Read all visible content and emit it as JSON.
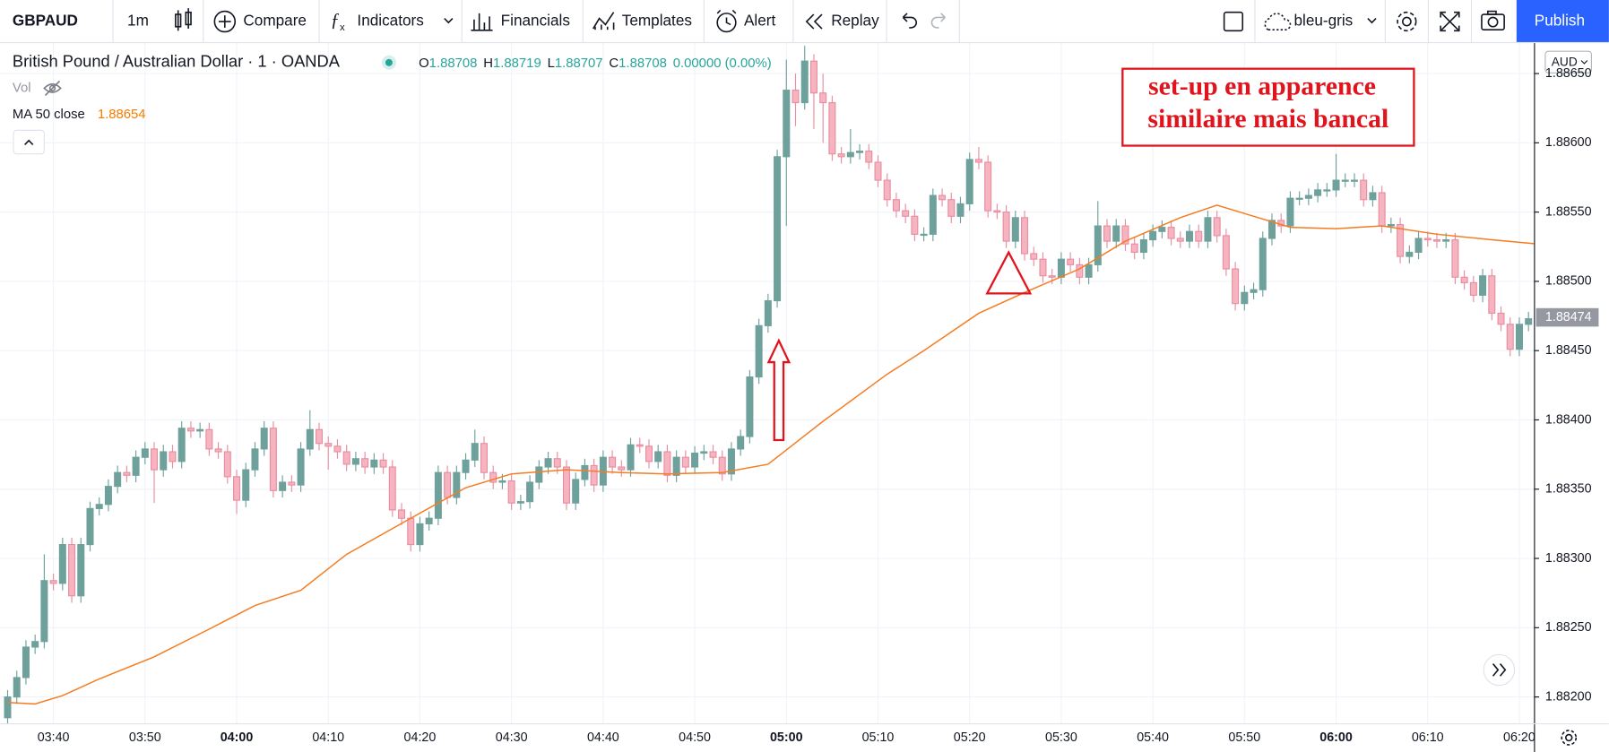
{
  "toolbar": {
    "symbol": "GBPAUD",
    "interval": "1m",
    "compare": "Compare",
    "indicators": "Indicators",
    "financials": "Financials",
    "templates": "Templates",
    "alert": "Alert",
    "replay": "Replay",
    "layout": "bleu-gris",
    "publish": "Publish"
  },
  "legend": {
    "instrument": "British Pound / Australian Dollar · 1 · OANDA",
    "ohlc": [
      {
        "k": "O",
        "v": "1.88708"
      },
      {
        "k": "H",
        "v": "1.88719"
      },
      {
        "k": "L",
        "v": "1.88707"
      },
      {
        "k": "C",
        "v": "1.88708"
      }
    ],
    "change": "0.00000 (0.00%)",
    "vol": "Vol",
    "ma_name": "MA 50 close",
    "ma_value": "1.88654"
  },
  "currency": "AUD",
  "chart_data": {
    "type": "candlestick",
    "x": [
      215,
      216,
      217,
      218,
      219,
      220,
      221,
      222,
      223,
      224,
      225,
      226,
      227,
      228,
      229,
      230,
      231,
      232,
      233,
      234,
      235,
      236,
      237,
      238,
      239,
      240,
      241,
      242,
      243,
      244,
      245,
      246,
      247,
      248,
      249,
      250,
      251,
      252,
      253,
      254,
      255,
      256,
      257,
      258,
      259,
      260,
      261,
      262,
      263,
      264,
      265,
      266,
      267,
      268,
      269,
      270,
      271,
      272,
      273,
      274,
      275,
      276,
      277,
      278,
      279,
      280,
      281,
      282,
      283,
      284,
      285,
      286,
      287,
      288,
      289,
      290,
      291,
      292,
      293,
      294,
      295,
      296,
      297,
      298,
      299,
      300,
      301,
      302,
      303,
      304,
      305,
      306,
      307,
      308,
      309,
      310,
      311,
      312,
      313,
      314,
      315,
      316,
      317,
      318,
      319,
      320,
      321,
      322,
      323,
      324,
      325,
      326,
      327,
      328,
      329,
      330,
      331,
      332,
      333,
      334,
      335,
      336,
      337,
      338,
      339,
      340,
      341,
      342,
      343,
      344,
      345,
      346,
      347,
      348,
      349,
      350,
      351,
      352,
      353,
      354,
      355,
      356,
      357,
      358,
      359,
      360,
      361,
      362,
      363,
      364,
      365,
      366,
      367,
      368,
      369,
      370,
      371,
      372,
      373,
      374,
      375,
      376,
      377,
      378,
      379,
      380,
      381
    ],
    "open": [
      1.88185,
      1.882,
      1.88214,
      1.88236,
      1.8824,
      1.88284,
      1.88282,
      1.8831,
      1.88273,
      1.8831,
      1.88336,
      1.88339,
      1.88352,
      1.88362,
      1.8836,
      1.88373,
      1.88379,
      1.88364,
      1.88377,
      1.8837,
      1.88394,
      1.88392,
      1.88393,
      1.88379,
      1.88377,
      1.88359,
      1.88342,
      1.88364,
      1.88379,
      1.88394,
      1.88349,
      1.88355,
      1.88353,
      1.88379,
      1.88393,
      1.88383,
      1.88381,
      1.88377,
      1.88368,
      1.88372,
      1.88366,
      1.88371,
      1.88366,
      1.88335,
      1.88329,
      1.8831,
      1.88325,
      1.88329,
      1.88362,
      1.88344,
      1.88362,
      1.88371,
      1.88383,
      1.88362,
      1.88355,
      1.88356,
      1.8834,
      1.88341,
      1.88355,
      1.88366,
      1.88372,
      1.88366,
      1.8834,
      1.88357,
      1.88367,
      1.88353,
      1.88373,
      1.88366,
      1.88364,
      1.88382,
      1.88381,
      1.8837,
      1.88377,
      1.8836,
      1.88373,
      1.88366,
      1.88376,
      1.88377,
      1.88373,
      1.88361,
      1.88379,
      1.88388,
      1.88431,
      1.88468,
      1.88486,
      1.8859,
      1.88638,
      1.88629,
      1.88659,
      1.88636,
      1.88629,
      1.88592,
      1.8859,
      1.88593,
      1.88594,
      1.88586,
      1.88573,
      1.88559,
      1.88551,
      1.88547,
      1.88534,
      1.88534,
      1.88562,
      1.88559,
      1.88547,
      1.88556,
      1.88588,
      1.88586,
      1.88551,
      1.8855,
      1.88529,
      1.88546,
      1.8852,
      1.88516,
      1.88504,
      1.88503,
      1.88516,
      1.88512,
      1.88503,
      1.88512,
      1.8854,
      1.88529,
      1.8854,
      1.88527,
      1.88521,
      1.8853,
      1.88536,
      1.88539,
      1.88531,
      1.88529,
      1.88536,
      1.88529,
      1.88546,
      1.88533,
      1.88509,
      1.88484,
      1.88492,
      1.88494,
      1.88531,
      1.88544,
      1.8854,
      1.8856,
      1.8856,
      1.88562,
      1.88566,
      1.88566,
      1.88573,
      1.88573,
      1.88573,
      1.88559,
      1.88564,
      1.8854,
      1.88541,
      1.88518,
      1.88521,
      1.88531,
      1.8853,
      1.88529,
      1.8853,
      1.88503,
      1.88499,
      1.8849,
      1.88504,
      1.88477,
      1.88469,
      1.88451,
      1.88469
    ],
    "high": [
      1.88205,
      1.88219,
      1.88241,
      1.88245,
      1.88303,
      1.88289,
      1.88315,
      1.88315,
      1.88315,
      1.88341,
      1.88344,
      1.88357,
      1.88367,
      1.88367,
      1.88378,
      1.88384,
      1.88384,
      1.88382,
      1.88382,
      1.88399,
      1.88399,
      1.88398,
      1.88398,
      1.88384,
      1.88382,
      1.88364,
      1.88369,
      1.88384,
      1.88399,
      1.88399,
      1.8836,
      1.8836,
      1.88384,
      1.88407,
      1.88398,
      1.88388,
      1.88386,
      1.88382,
      1.88377,
      1.88377,
      1.88376,
      1.88376,
      1.88371,
      1.8834,
      1.88334,
      1.8833,
      1.88334,
      1.88367,
      1.88367,
      1.88367,
      1.88376,
      1.88393,
      1.88388,
      1.88367,
      1.88361,
      1.88361,
      1.88346,
      1.8836,
      1.88371,
      1.88377,
      1.88377,
      1.88371,
      1.88362,
      1.88372,
      1.88372,
      1.88378,
      1.88378,
      1.88371,
      1.88387,
      1.88387,
      1.88386,
      1.88382,
      1.88382,
      1.88378,
      1.88378,
      1.88381,
      1.88382,
      1.88382,
      1.88378,
      1.88384,
      1.88393,
      1.88436,
      1.88473,
      1.88491,
      1.88595,
      1.8866,
      1.8865,
      1.8867,
      1.88664,
      1.8865,
      1.88634,
      1.88597,
      1.8861,
      1.88599,
      1.88599,
      1.88591,
      1.88578,
      1.88564,
      1.88556,
      1.88552,
      1.88539,
      1.88567,
      1.88567,
      1.88564,
      1.88561,
      1.88593,
      1.88597,
      1.88591,
      1.88556,
      1.88555,
      1.88551,
      1.88551,
      1.88525,
      1.88521,
      1.88509,
      1.88521,
      1.88521,
      1.88517,
      1.88517,
      1.88558,
      1.88545,
      1.88545,
      1.88545,
      1.88532,
      1.88535,
      1.88541,
      1.88544,
      1.88544,
      1.88536,
      1.88541,
      1.88541,
      1.88551,
      1.88551,
      1.88538,
      1.88514,
      1.88497,
      1.88499,
      1.88536,
      1.88549,
      1.88549,
      1.88565,
      1.88565,
      1.88567,
      1.88571,
      1.88571,
      1.88592,
      1.88578,
      1.88578,
      1.88578,
      1.88569,
      1.88569,
      1.88546,
      1.88546,
      1.88526,
      1.88536,
      1.88536,
      1.88535,
      1.88535,
      1.88535,
      1.88508,
      1.88504,
      1.88509,
      1.88509,
      1.88482,
      1.88474,
      1.88474,
      1.88478
    ],
    "low": [
      1.8818,
      1.88195,
      1.88209,
      1.88231,
      1.88235,
      1.88277,
      1.88277,
      1.88268,
      1.88268,
      1.88305,
      1.88331,
      1.88334,
      1.88347,
      1.88355,
      1.88355,
      1.88368,
      1.8834,
      1.88359,
      1.88365,
      1.88365,
      1.88387,
      1.88387,
      1.88374,
      1.88372,
      1.88354,
      1.88332,
      1.88337,
      1.88359,
      1.88374,
      1.88344,
      1.88344,
      1.88348,
      1.88348,
      1.88374,
      1.88378,
      1.88364,
      1.88372,
      1.88363,
      1.88363,
      1.88361,
      1.88361,
      1.88361,
      1.8833,
      1.88324,
      1.88305,
      1.88305,
      1.8832,
      1.88324,
      1.88339,
      1.88339,
      1.88357,
      1.88366,
      1.88357,
      1.8835,
      1.8835,
      1.88335,
      1.88335,
      1.88336,
      1.8835,
      1.88361,
      1.88361,
      1.88335,
      1.88335,
      1.88352,
      1.88348,
      1.88348,
      1.88361,
      1.88359,
      1.88359,
      1.88376,
      1.88365,
      1.88365,
      1.88355,
      1.88355,
      1.88361,
      1.88361,
      1.88371,
      1.88368,
      1.88356,
      1.88356,
      1.88374,
      1.88383,
      1.88426,
      1.88463,
      1.88481,
      1.8854,
      1.88612,
      1.88624,
      1.8861,
      1.886,
      1.88587,
      1.88585,
      1.88585,
      1.88588,
      1.88581,
      1.88568,
      1.88554,
      1.88546,
      1.88542,
      1.88529,
      1.88529,
      1.88529,
      1.88554,
      1.88542,
      1.88542,
      1.88551,
      1.88581,
      1.88546,
      1.88545,
      1.88524,
      1.88524,
      1.88515,
      1.88511,
      1.88499,
      1.88498,
      1.88498,
      1.88507,
      1.88498,
      1.88498,
      1.88507,
      1.88524,
      1.88524,
      1.88522,
      1.88516,
      1.88516,
      1.88525,
      1.88531,
      1.88526,
      1.88524,
      1.88524,
      1.88524,
      1.88524,
      1.88528,
      1.88504,
      1.88479,
      1.88479,
      1.88487,
      1.88489,
      1.88526,
      1.88535,
      1.88535,
      1.88555,
      1.88555,
      1.88557,
      1.88561,
      1.88561,
      1.88568,
      1.88568,
      1.88554,
      1.88554,
      1.88535,
      1.88535,
      1.88513,
      1.88513,
      1.88516,
      1.88525,
      1.88524,
      1.88524,
      1.88498,
      1.88494,
      1.88485,
      1.88485,
      1.88472,
      1.88464,
      1.88446,
      1.88446,
      1.88464
    ],
    "close": [
      1.882,
      1.88214,
      1.88236,
      1.8824,
      1.88284,
      1.88282,
      1.8831,
      1.88273,
      1.8831,
      1.88336,
      1.88339,
      1.88352,
      1.88362,
      1.8836,
      1.88373,
      1.88379,
      1.88364,
      1.88377,
      1.8837,
      1.88394,
      1.88392,
      1.88393,
      1.88379,
      1.88377,
      1.88359,
      1.88342,
      1.88364,
      1.88379,
      1.88394,
      1.88349,
      1.88355,
      1.88353,
      1.88379,
      1.88393,
      1.88383,
      1.88381,
      1.88377,
      1.88368,
      1.88372,
      1.88366,
      1.88371,
      1.88366,
      1.88335,
      1.88329,
      1.8831,
      1.88325,
      1.88329,
      1.88362,
      1.88344,
      1.88362,
      1.88371,
      1.88383,
      1.88362,
      1.88355,
      1.88356,
      1.8834,
      1.88341,
      1.88355,
      1.88366,
      1.88372,
      1.88366,
      1.8834,
      1.88357,
      1.88367,
      1.88353,
      1.88373,
      1.88366,
      1.88364,
      1.88382,
      1.88381,
      1.8837,
      1.88377,
      1.8836,
      1.88373,
      1.88366,
      1.88376,
      1.88377,
      1.88373,
      1.88361,
      1.88379,
      1.88388,
      1.88431,
      1.88468,
      1.88486,
      1.8859,
      1.88638,
      1.88629,
      1.88659,
      1.88636,
      1.88629,
      1.88592,
      1.8859,
      1.88593,
      1.88594,
      1.88586,
      1.88573,
      1.88559,
      1.88551,
      1.88547,
      1.88534,
      1.88534,
      1.88562,
      1.88559,
      1.88547,
      1.88556,
      1.88588,
      1.88586,
      1.88551,
      1.8855,
      1.88529,
      1.88546,
      1.8852,
      1.88516,
      1.88504,
      1.88503,
      1.88516,
      1.88512,
      1.88503,
      1.88512,
      1.8854,
      1.88529,
      1.8854,
      1.88527,
      1.88521,
      1.8853,
      1.88536,
      1.88539,
      1.88531,
      1.88529,
      1.88536,
      1.88529,
      1.88546,
      1.88533,
      1.88509,
      1.88484,
      1.88492,
      1.88494,
      1.88531,
      1.88544,
      1.8854,
      1.8856,
      1.8856,
      1.88562,
      1.88566,
      1.88566,
      1.88573,
      1.88573,
      1.88573,
      1.88559,
      1.88564,
      1.8854,
      1.88541,
      1.88518,
      1.88521,
      1.88531,
      1.8853,
      1.88529,
      1.8853,
      1.88503,
      1.88499,
      1.8849,
      1.88504,
      1.88477,
      1.88469,
      1.88451,
      1.88469,
      1.88473
    ],
    "up_color": "#6fa19c",
    "down_color": "#f6b3c0",
    "down_border": "#e88ea0",
    "ma": {
      "name": "MA 50 close",
      "color": "#f57c20",
      "x": [
        215,
        218,
        221,
        225,
        231,
        237,
        242,
        247,
        252,
        259,
        265,
        270,
        276,
        282,
        287,
        293,
        298,
        304,
        311,
        315,
        321,
        326,
        332,
        337,
        343,
        347,
        351,
        355,
        360,
        365,
        371,
        377,
        382
      ],
      "values": [
        1.88196,
        1.88195,
        1.88201,
        1.88213,
        1.88229,
        1.88249,
        1.88266,
        1.88277,
        1.88303,
        1.88329,
        1.88351,
        1.88361,
        1.88364,
        1.88362,
        1.88361,
        1.88362,
        1.88368,
        1.88399,
        1.88433,
        1.8845,
        1.88477,
        1.88492,
        1.88509,
        1.88529,
        1.88546,
        1.88555,
        1.88547,
        1.88539,
        1.88538,
        1.8854,
        1.88534,
        1.8853,
        1.88527
      ]
    },
    "last_price": 1.88474,
    "xlim": [
      214.18,
      381.6
    ],
    "ylim": [
      1.88181,
      1.88672
    ],
    "xticks": [
      {
        "value": 220,
        "label": "03:40"
      },
      {
        "value": 230,
        "label": "03:50"
      },
      {
        "value": 240,
        "label": "04:00"
      },
      {
        "value": 250,
        "label": "04:10"
      },
      {
        "value": 260,
        "label": "04:20"
      },
      {
        "value": 270,
        "label": "04:30"
      },
      {
        "value": 280,
        "label": "04:40"
      },
      {
        "value": 290,
        "label": "04:50"
      },
      {
        "value": 300,
        "label": "05:00"
      },
      {
        "value": 310,
        "label": "05:10"
      },
      {
        "value": 320,
        "label": "05:20"
      },
      {
        "value": 330,
        "label": "05:30"
      },
      {
        "value": 340,
        "label": "05:40"
      },
      {
        "value": 350,
        "label": "05:50"
      },
      {
        "value": 360,
        "label": "06:00"
      },
      {
        "value": 370,
        "label": "06:10"
      },
      {
        "value": 380,
        "label": "06:20"
      }
    ],
    "yticks": [
      {
        "value": 1.882,
        "label": "1.88200"
      },
      {
        "value": 1.8825,
        "label": "1.88250"
      },
      {
        "value": 1.883,
        "label": "1.88300"
      },
      {
        "value": 1.8835,
        "label": "1.88350"
      },
      {
        "value": 1.884,
        "label": "1.88400"
      },
      {
        "value": 1.8845,
        "label": "1.88450"
      },
      {
        "value": 1.885,
        "label": "1.88500"
      },
      {
        "value": 1.8855,
        "label": "1.88550"
      },
      {
        "value": 1.886,
        "label": "1.88600"
      },
      {
        "value": 1.8865,
        "label": "1.88650"
      }
    ],
    "grid": true,
    "annotation": [
      "set-up en apparence",
      "similaire mais bancal"
    ]
  }
}
